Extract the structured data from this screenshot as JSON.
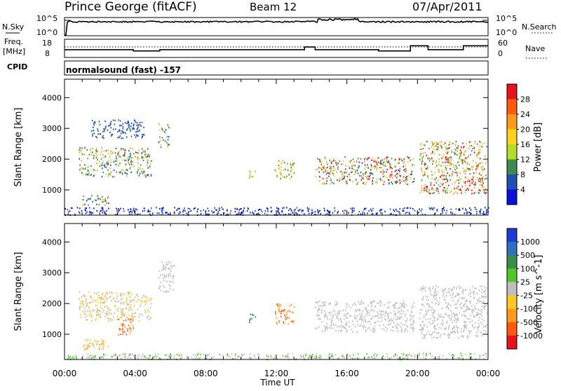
{
  "header": {
    "station": "Prince George (fitACF)",
    "beam": "Beam 12",
    "date": "07/Apr/2011"
  },
  "top_panels": {
    "nsky_label": "N.Sky",
    "nsky_ticks": [
      "10^5",
      "10^0"
    ],
    "nsearch_label": "N.Search",
    "nsearch_ticks": [
      "10^5",
      "10^0"
    ],
    "freq_label": "Freq.",
    "freq_unit": "[MHz]",
    "freq_ticks": [
      "18",
      "8"
    ],
    "nave_label": "Nave",
    "nave_ticks": [
      "60",
      "0"
    ],
    "cpid_label": "CPID",
    "cpid_text": "normalsound (fast) -157"
  },
  "chart_data": [
    {
      "type": "heatmap",
      "name": "power-panel",
      "ylabel": "Slant Range [km]",
      "ylim": [
        180,
        4600
      ],
      "yticks": [
        1000,
        2000,
        3000,
        4000
      ],
      "xlim": [
        0,
        24
      ],
      "colorbar_label": "Power [dB]",
      "colorbar_ticks": [
        "28",
        "24",
        "20",
        "16",
        "12",
        "8",
        "4"
      ],
      "colorbar_colors": [
        "#e8121a",
        "#ff5a10",
        "#ff9a1e",
        "#ffd21e",
        "#b4dc28",
        "#3c8c50",
        "#2050b4",
        "#0a10dc"
      ],
      "blobs": [
        {
          "t0": 0.8,
          "t1": 4.9,
          "r0": 1450,
          "r1": 2400,
          "c": [
            "#2050b4",
            "#3c8c50",
            "#b4dc28",
            "#ff9a1e"
          ]
        },
        {
          "t0": 1.0,
          "t1": 2.5,
          "r0": 520,
          "r1": 850,
          "c": [
            "#2050b4",
            "#3c8c50",
            "#ff9a1e"
          ]
        },
        {
          "t0": 1.5,
          "t1": 4.5,
          "r0": 2700,
          "r1": 3300,
          "c": [
            "#2050b4"
          ]
        },
        {
          "t0": 5.3,
          "t1": 5.9,
          "r0": 2400,
          "r1": 3200,
          "c": [
            "#3c8c50",
            "#2050b4",
            "#b4dc28"
          ]
        },
        {
          "t0": 10.4,
          "t1": 10.8,
          "r0": 1400,
          "r1": 1700,
          "c": [
            "#b4dc28",
            "#ff9a1e"
          ]
        },
        {
          "t0": 11.9,
          "t1": 13.0,
          "r0": 1350,
          "r1": 2000,
          "c": [
            "#3c8c50",
            "#ff9a1e",
            "#ffd21e"
          ]
        },
        {
          "t0": 14.2,
          "t1": 19.8,
          "r0": 1200,
          "r1": 2100,
          "c": [
            "#2050b4",
            "#3c8c50",
            "#b4dc28",
            "#ff9a1e",
            "#e8121a"
          ]
        },
        {
          "t0": 20.1,
          "t1": 23.9,
          "r0": 900,
          "r1": 2600,
          "c": [
            "#3c8c50",
            "#b4dc28",
            "#ff9a1e",
            "#e8121a"
          ]
        },
        {
          "t0": 0.0,
          "t1": 24.0,
          "r0": 200,
          "r1": 450,
          "c": [
            "#2050b4",
            "#0a10dc"
          ]
        }
      ]
    },
    {
      "type": "heatmap",
      "name": "velocity-panel",
      "ylabel": "Slant Range [km]",
      "xlabel": "Time UT",
      "ylim": [
        180,
        4600
      ],
      "yticks": [
        1000,
        2000,
        3000,
        4000
      ],
      "xlim": [
        0,
        24
      ],
      "xticks": [
        "00:00",
        "04:00",
        "08:00",
        "12:00",
        "16:00",
        "20:00",
        "00:00"
      ],
      "colorbar_label": "Velocity [m s^-1]",
      "colorbar_ticks": [
        "1000",
        "500",
        "100",
        "25",
        "-25",
        "-100",
        "-500",
        "-1000"
      ],
      "colorbar_colors": [
        "#1e3cd2",
        "#3070c0",
        "#3c8c50",
        "#50c828",
        "#bebebe",
        "#ffc828",
        "#ff9a1e",
        "#ff5a10",
        "#e8121a"
      ],
      "blobs": [
        {
          "t0": 0.8,
          "t1": 4.9,
          "r0": 1450,
          "r1": 2400,
          "c": [
            "#bebebe",
            "#ffc828"
          ]
        },
        {
          "t0": 3.0,
          "t1": 3.9,
          "r0": 1000,
          "r1": 1600,
          "c": [
            "#ff5a10",
            "#ff9a1e"
          ]
        },
        {
          "t0": 1.0,
          "t1": 2.5,
          "r0": 520,
          "r1": 850,
          "c": [
            "#ffc828",
            "#ff9a1e"
          ]
        },
        {
          "t0": 5.3,
          "t1": 6.2,
          "r0": 2400,
          "r1": 3400,
          "c": [
            "#bebebe"
          ]
        },
        {
          "t0": 10.4,
          "t1": 10.8,
          "r0": 1400,
          "r1": 1700,
          "c": [
            "#3c8c50"
          ]
        },
        {
          "t0": 11.9,
          "t1": 13.0,
          "r0": 1350,
          "r1": 2000,
          "c": [
            "#ff9a1e",
            "#ff5a10"
          ]
        },
        {
          "t0": 14.2,
          "t1": 19.8,
          "r0": 1100,
          "r1": 2100,
          "c": [
            "#bebebe"
          ]
        },
        {
          "t0": 20.1,
          "t1": 23.9,
          "r0": 900,
          "r1": 2600,
          "c": [
            "#bebebe"
          ]
        },
        {
          "t0": 0.0,
          "t1": 24.0,
          "r0": 200,
          "r1": 400,
          "c": [
            "#50c828",
            "#bebebe"
          ]
        }
      ]
    }
  ]
}
